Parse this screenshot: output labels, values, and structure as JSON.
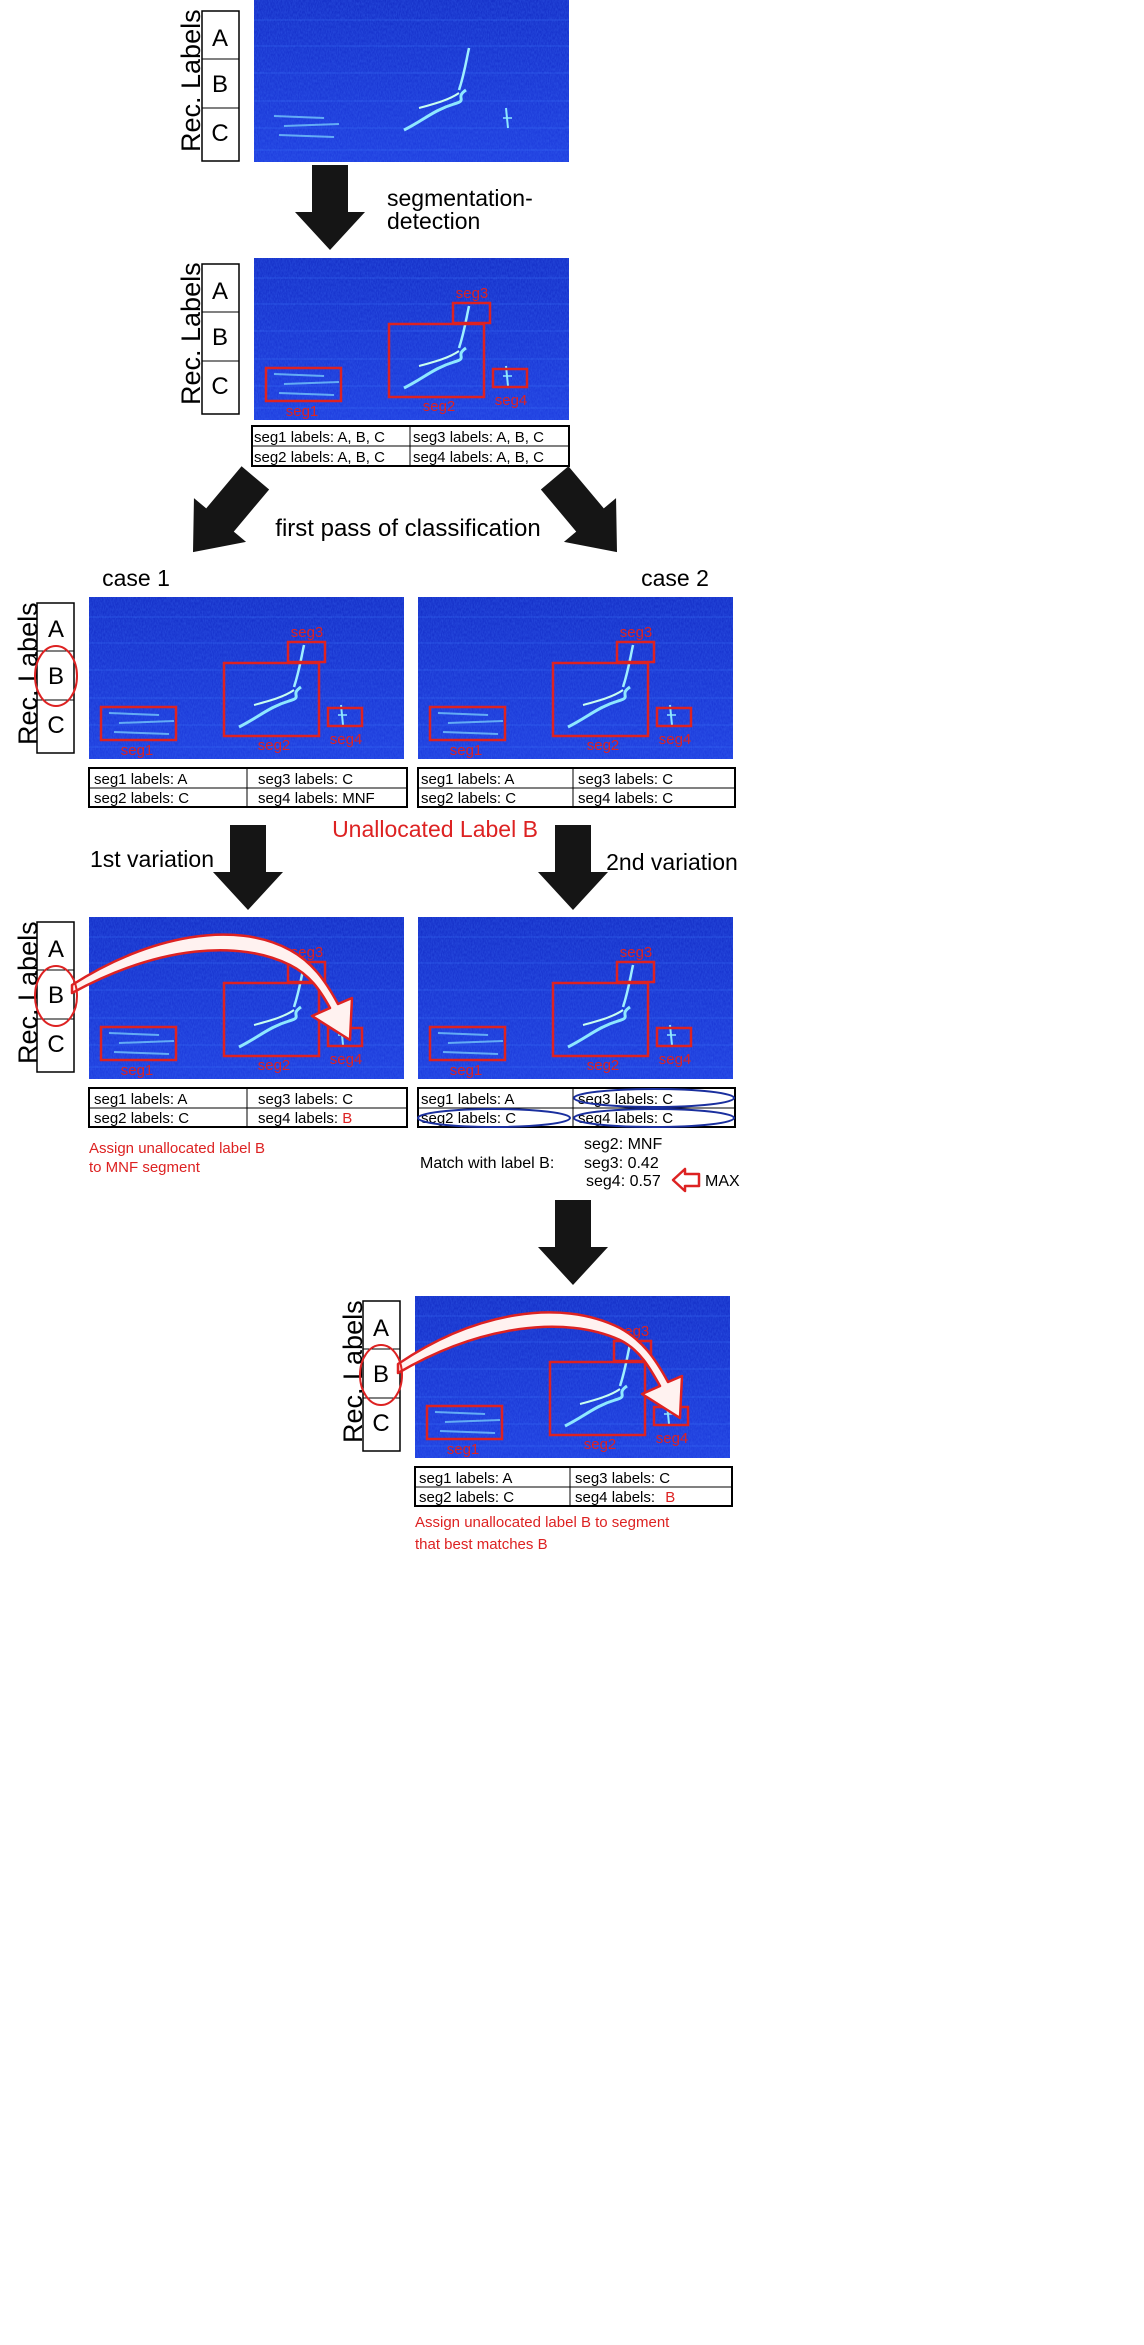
{
  "text": {
    "rec_labels": "Rec. Labels",
    "label_a": "A",
    "label_b": "B",
    "label_c": "C",
    "seg1": "seg1",
    "seg2": "seg2",
    "seg3": "seg3",
    "seg4": "seg4",
    "segmentation_line1": "segmentation-",
    "segmentation_line2": "detection",
    "first_pass": "first pass of classification",
    "case1": "case 1",
    "case2": "case 2",
    "unallocated": "Unallocated Label B",
    "variation1": "1st variation",
    "variation2": "2nd variation",
    "assign1_line1": "Assign unallocated label B",
    "assign1_line2": "to MNF segment",
    "match_label": "Match with label B:",
    "match_seg2": "seg2: MNF",
    "match_seg3": "seg3: 0.42",
    "match_seg4": "seg4: 0.57",
    "max": "MAX",
    "assign2_line1": "Assign unallocated label B to segment",
    "assign2_line2": "that best matches B"
  },
  "tables": {
    "initial": {
      "seg1": "seg1 labels: A, B, C",
      "seg2": "seg2 labels: A, B, C",
      "seg3": "seg3 labels: A, B, C",
      "seg4": "seg4 labels: A, B, C"
    },
    "case1": {
      "seg1": "seg1 labels: A",
      "seg2": "seg2 labels: C",
      "seg3": "seg3 labels: C",
      "seg4": "seg4 labels: MNF"
    },
    "case2": {
      "seg1": "seg1 labels: A",
      "seg2": "seg2 labels: C",
      "seg3": "seg3 labels: C",
      "seg4": "seg4 labels: C"
    },
    "variation1": {
      "seg1": "seg1 labels: A",
      "seg2": "seg2 labels: C",
      "seg3": "seg3 labels: C",
      "seg4_prefix": "seg4 labels: ",
      "seg4_value": "B"
    },
    "variation2": {
      "seg1": "seg1 labels: A",
      "seg2": "seg2 labels: C",
      "seg3": "seg3 labels: C",
      "seg4": "seg4 labels: C"
    },
    "final": {
      "seg1": "seg1 labels: A",
      "seg2": "seg2 labels: C",
      "seg3": "seg3 labels: C",
      "seg4_prefix": "seg4 labels: ",
      "seg4_value": "B"
    }
  },
  "colors": {
    "red": "#dd2222",
    "spectrogram_bg": "#1a35d8",
    "arrow": "#151515",
    "ellipse_blue": "#1a2f9e"
  },
  "icons": {
    "down_arrow": "thick-down-arrow-icon",
    "diagonal_arrow": "thick-diagonal-arrow-icon",
    "curved_arrow": "curved-white-arrow-icon",
    "max_pointer": "hollow-left-arrow-icon"
  }
}
